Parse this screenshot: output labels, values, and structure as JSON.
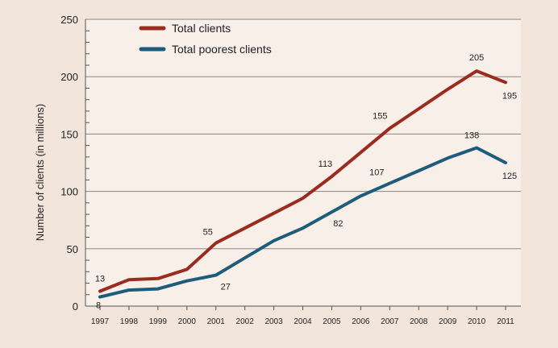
{
  "chart_data": {
    "type": "line",
    "title": "",
    "xlabel": "",
    "ylabel": "Number of clients (in millions)",
    "x": [
      "1997",
      "1998",
      "1999",
      "2000",
      "2001",
      "2002",
      "2003",
      "2004",
      "2005",
      "2006",
      "2007",
      "2008",
      "2009",
      "2010",
      "2011"
    ],
    "ylim": [
      0,
      250
    ],
    "yticks": [
      0,
      50,
      100,
      150,
      200,
      250
    ],
    "grid": "horizontal",
    "legend_position": "top-left",
    "series": [
      {
        "name": "Total clients",
        "color": "#9b2b1f",
        "values": [
          13,
          23,
          24,
          32,
          55,
          68,
          81,
          94,
          113,
          134,
          155,
          172,
          189,
          205,
          195
        ],
        "labels": [
          {
            "index": 0,
            "text": "13"
          },
          {
            "index": 4,
            "text": "55"
          },
          {
            "index": 8,
            "text": "113"
          },
          {
            "index": 10,
            "text": "155"
          },
          {
            "index": 13,
            "text": "205"
          },
          {
            "index": 14,
            "text": "195"
          }
        ]
      },
      {
        "name": "Total poorest clients",
        "color": "#1e5c7c",
        "values": [
          8,
          14,
          15,
          22,
          27,
          42,
          57,
          68,
          82,
          96,
          107,
          118,
          129,
          138,
          125
        ],
        "labels": [
          {
            "index": 0,
            "text": "8"
          },
          {
            "index": 4,
            "text": "27"
          },
          {
            "index": 8,
            "text": "82"
          },
          {
            "index": 10,
            "text": "107"
          },
          {
            "index": 13,
            "text": "138"
          },
          {
            "index": 14,
            "text": "125"
          }
        ]
      }
    ]
  }
}
